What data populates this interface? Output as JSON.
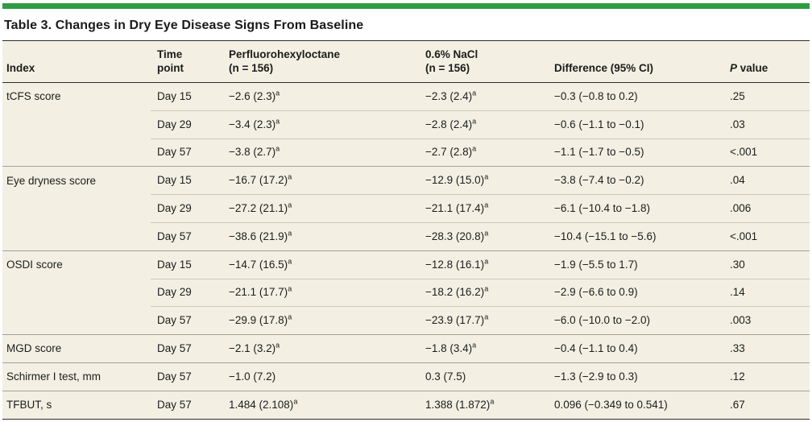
{
  "title": "Table 3. Changes in Dry Eye Disease Signs From Baseline",
  "colors": {
    "accent_green": "#2e9c41",
    "table_background": "#f3f0e3",
    "dark_rule": "#2b2b2b",
    "group_rule": "#a3a196",
    "inner_rule": "#cbc9bd"
  },
  "table": {
    "columns": [
      {
        "key": "index",
        "label_lines": [
          "Index"
        ]
      },
      {
        "key": "time_point",
        "label_lines": [
          "Time",
          "point"
        ]
      },
      {
        "key": "pfho",
        "label_lines": [
          "Perfluorohexyloctane",
          "(n = 156)"
        ]
      },
      {
        "key": "nacl",
        "label_lines": [
          "0.6% NaCl",
          "(n = 156)"
        ]
      },
      {
        "key": "difference",
        "label_lines": [
          "Difference (95% CI)"
        ]
      },
      {
        "key": "p_value",
        "label_lines": [
          "P value"
        ],
        "italic_lead": true
      }
    ],
    "rows": [
      {
        "group_start": true,
        "index": "tCFS score",
        "time_point": "Day 15",
        "pfho": {
          "text": "−2.6 (2.3)",
          "sup": "a"
        },
        "nacl": {
          "text": "−2.3 (2.4)",
          "sup": "a"
        },
        "difference": "−0.3 (−0.8 to 0.2)",
        "p_value": ".25"
      },
      {
        "group_start": false,
        "index": "",
        "time_point": "Day 29",
        "pfho": {
          "text": "−3.4 (2.3)",
          "sup": "a"
        },
        "nacl": {
          "text": "−2.8 (2.4)",
          "sup": "a"
        },
        "difference": "−0.6 (−1.1 to −0.1)",
        "p_value": ".03"
      },
      {
        "group_start": false,
        "index": "",
        "time_point": "Day 57",
        "pfho": {
          "text": "−3.8 (2.7)",
          "sup": "a"
        },
        "nacl": {
          "text": "−2.7 (2.8)",
          "sup": "a"
        },
        "difference": "−1.1 (−1.7 to −0.5)",
        "p_value": "<.001"
      },
      {
        "group_start": true,
        "index": "Eye dryness score",
        "time_point": "Day 15",
        "pfho": {
          "text": "−16.7 (17.2)",
          "sup": "a"
        },
        "nacl": {
          "text": "−12.9 (15.0)",
          "sup": "a"
        },
        "difference": "−3.8 (−7.4 to −0.2)",
        "p_value": ".04"
      },
      {
        "group_start": false,
        "index": "",
        "time_point": "Day 29",
        "pfho": {
          "text": "−27.2 (21.1)",
          "sup": "a"
        },
        "nacl": {
          "text": "−21.1 (17.4)",
          "sup": "a"
        },
        "difference": "−6.1 (−10.4 to −1.8)",
        "p_value": ".006"
      },
      {
        "group_start": false,
        "index": "",
        "time_point": "Day 57",
        "pfho": {
          "text": "−38.6 (21.9)",
          "sup": "a"
        },
        "nacl": {
          "text": "−28.3 (20.8)",
          "sup": "a"
        },
        "difference": "−10.4 (−15.1 to −5.6)",
        "p_value": "<.001"
      },
      {
        "group_start": true,
        "index": "OSDI score",
        "time_point": "Day 15",
        "pfho": {
          "text": "−14.7 (16.5)",
          "sup": "a"
        },
        "nacl": {
          "text": "−12.8 (16.1)",
          "sup": "a"
        },
        "difference": "−1.9 (−5.5 to 1.7)",
        "p_value": ".30"
      },
      {
        "group_start": false,
        "index": "",
        "time_point": "Day 29",
        "pfho": {
          "text": "−21.1 (17.7)",
          "sup": "a"
        },
        "nacl": {
          "text": "−18.2 (16.2)",
          "sup": "a"
        },
        "difference": "−2.9 (−6.6 to 0.9)",
        "p_value": ".14"
      },
      {
        "group_start": false,
        "index": "",
        "time_point": "Day 57",
        "pfho": {
          "text": "−29.9 (17.8)",
          "sup": "a"
        },
        "nacl": {
          "text": "−23.9 (17.7)",
          "sup": "a"
        },
        "difference": "−6.0 (−10.0 to −2.0)",
        "p_value": ".003"
      },
      {
        "group_start": true,
        "index": "MGD score",
        "time_point": "Day 57",
        "pfho": {
          "text": "−2.1 (3.2)",
          "sup": "a"
        },
        "nacl": {
          "text": "−1.8 (3.4)",
          "sup": "a"
        },
        "difference": "−0.4 (−1.1 to 0.4)",
        "p_value": ".33"
      },
      {
        "group_start": true,
        "index": "Schirmer I test, mm",
        "time_point": "Day 57",
        "pfho": {
          "text": "−1.0 (7.2)",
          "sup": ""
        },
        "nacl": {
          "text": "0.3 (7.5)",
          "sup": ""
        },
        "difference": "−1.3 (−2.9 to 0.3)",
        "p_value": ".12"
      },
      {
        "group_start": true,
        "index": "TFBUT, s",
        "time_point": "Day 57",
        "pfho": {
          "text": "1.484 (2.108)",
          "sup": "a"
        },
        "nacl": {
          "text": "1.388 (1.872)",
          "sup": "a"
        },
        "difference": "0.096 (−0.349 to 0.541)",
        "p_value": ".67"
      }
    ]
  }
}
